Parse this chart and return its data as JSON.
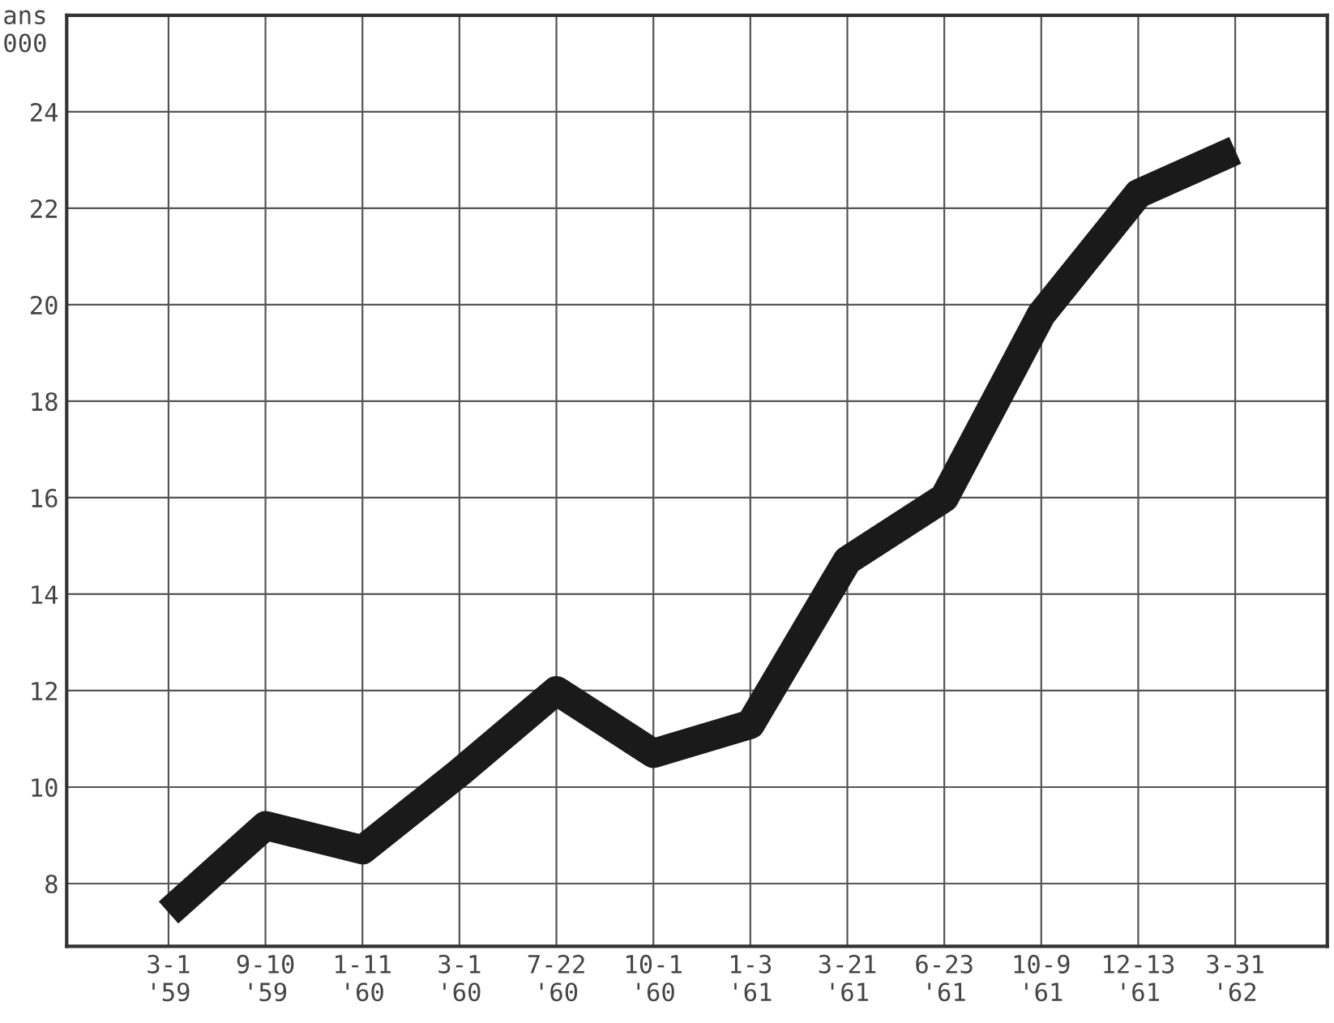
{
  "chart_data": {
    "type": "line",
    "ylabel": "ans\n000",
    "categories": [
      "3-1\n'59",
      "9-10\n'59",
      "1-11\n'60",
      "3-1\n'60",
      "7-22\n'60",
      "10-1\n'60",
      "1-3\n'61",
      "3-21\n'61",
      "6-23\n'61",
      "10-9\n'61",
      "12-13\n'61",
      "3-31\n'62"
    ],
    "series": [
      {
        "color": "#1a1a1a",
        "values": [
          7.4,
          9.2,
          8.7,
          10.3,
          12.0,
          10.7,
          11.3,
          14.7,
          16.0,
          19.8,
          22.3,
          23.2
        ]
      }
    ],
    "ylim": [
      6.7,
      26
    ],
    "yticks": [
      8,
      10,
      12,
      14,
      16,
      18,
      20,
      22,
      24
    ],
    "grid": true,
    "marker": "none",
    "line_style": "solid"
  }
}
